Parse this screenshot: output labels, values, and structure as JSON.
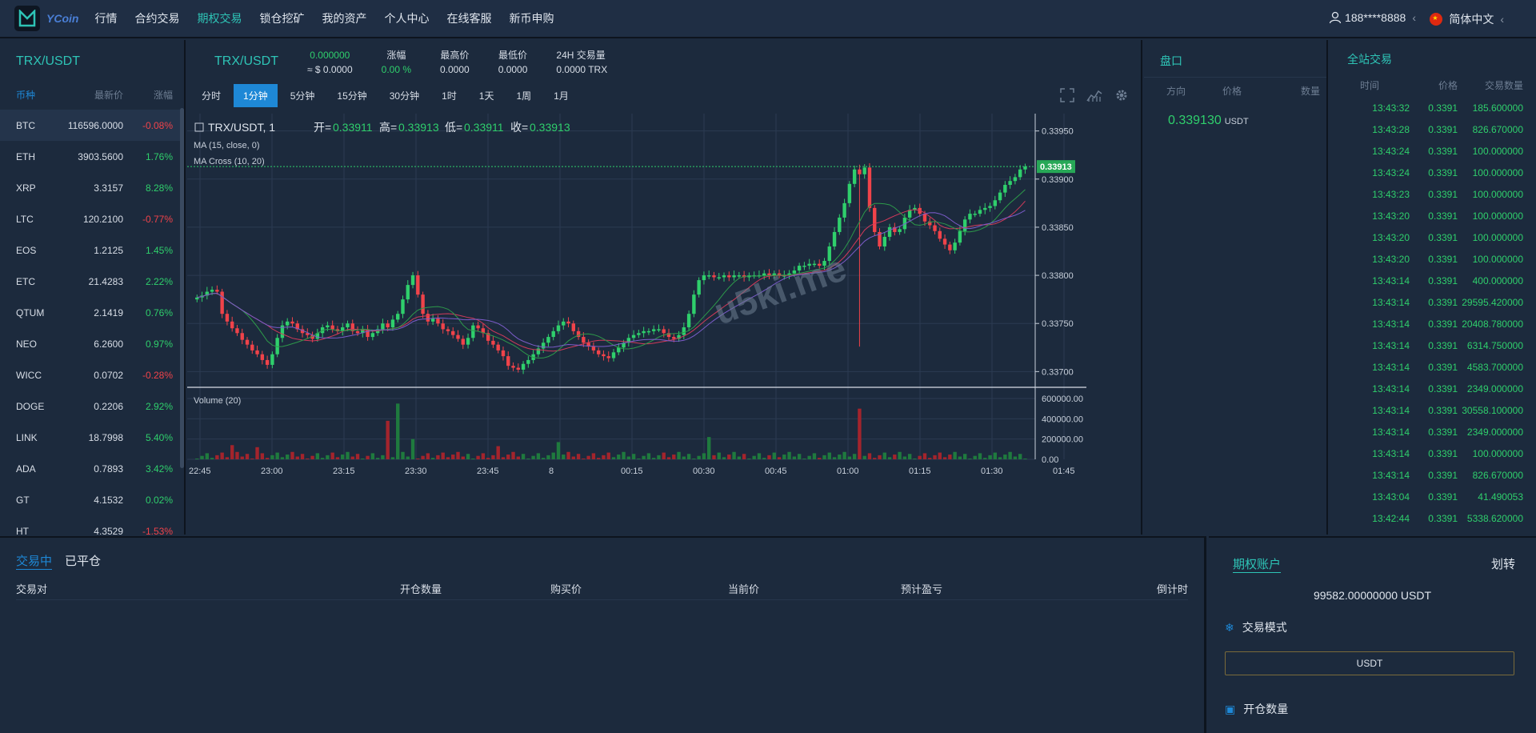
{
  "header": {
    "logo_text": "YCoin",
    "nav": [
      "行情",
      "合约交易",
      "期权交易",
      "锁仓挖矿",
      "我的资产",
      "个人中心",
      "在线客服",
      "新币申购"
    ],
    "active_nav": 2,
    "user": "188****8888",
    "user_arrow": "‹",
    "language": "简体中文",
    "lang_arrow": "‹"
  },
  "market_list": {
    "title": "TRX/USDT",
    "headers": [
      "币种",
      "最新价",
      "涨幅"
    ],
    "rows": [
      {
        "coin": "BTC",
        "price": "116596.0000",
        "change": "-0.08%",
        "dir": "down"
      },
      {
        "coin": "ETH",
        "price": "3903.5600",
        "change": "1.76%",
        "dir": "up"
      },
      {
        "coin": "XRP",
        "price": "3.3157",
        "change": "8.28%",
        "dir": "up"
      },
      {
        "coin": "LTC",
        "price": "120.2100",
        "change": "-0.77%",
        "dir": "down"
      },
      {
        "coin": "EOS",
        "price": "1.2125",
        "change": "1.45%",
        "dir": "up"
      },
      {
        "coin": "ETC",
        "price": "21.4283",
        "change": "2.22%",
        "dir": "up"
      },
      {
        "coin": "QTUM",
        "price": "2.1419",
        "change": "0.76%",
        "dir": "up"
      },
      {
        "coin": "NEO",
        "price": "6.2600",
        "change": "0.97%",
        "dir": "up"
      },
      {
        "coin": "WICC",
        "price": "0.0702",
        "change": "-0.28%",
        "dir": "down"
      },
      {
        "coin": "DOGE",
        "price": "0.2206",
        "change": "2.92%",
        "dir": "up"
      },
      {
        "coin": "LINK",
        "price": "18.7998",
        "change": "5.40%",
        "dir": "up"
      },
      {
        "coin": "ADA",
        "price": "0.7893",
        "change": "3.42%",
        "dir": "up"
      },
      {
        "coin": "GT",
        "price": "4.1532",
        "change": "0.02%",
        "dir": "up"
      },
      {
        "coin": "HT",
        "price": "4.3529",
        "change": "-1.53%",
        "dir": "down"
      }
    ]
  },
  "ticker": {
    "pair": "TRX/USDT",
    "price": "0.000000",
    "price_usd": "≈ $ 0.0000",
    "change_label": "涨幅",
    "change": "0.00 %",
    "high_label": "最高价",
    "high": "0.0000",
    "low_label": "最低价",
    "low": "0.0000",
    "vol_label": "24H 交易量",
    "vol": "0.0000 TRX"
  },
  "intervals": [
    "分时",
    "1分钟",
    "5分钟",
    "15分钟",
    "30分钟",
    "1时",
    "1天",
    "1周",
    "1月"
  ],
  "active_interval": 1,
  "chart_data": {
    "type": "candlestick",
    "symbol": "TRX/USDT, 1",
    "ohlc_text": {
      "open_label": "开=",
      "open": "0.33911",
      "high_label": "高=",
      "high": "0.33913",
      "low_label": "低=",
      "low": "0.33911",
      "close_label": "收=",
      "close": "0.33913"
    },
    "indicators": [
      "MA (15, close, 0)",
      "MA Cross (10, 20)"
    ],
    "volume_label": "Volume (20)",
    "price_ticks": [
      0.3395,
      0.339,
      0.3385,
      0.338,
      0.3375,
      0.337
    ],
    "price_tick_labels": [
      "0.33950",
      "0.33900",
      "0.33850",
      "0.33800",
      "0.33750",
      "0.33700"
    ],
    "ylim": [
      0.33687,
      0.33968
    ],
    "last_price": "0.33913",
    "volume_ticks": [
      600000,
      400000,
      200000,
      0
    ],
    "volume_tick_labels": [
      "600000.00",
      "400000.00",
      "200000.00",
      "0.00"
    ],
    "time_labels": [
      "22:45",
      "23:00",
      "23:15",
      "23:30",
      "23:45",
      "8",
      "00:15",
      "00:30",
      "00:45",
      "01:00",
      "01:15",
      "01:30",
      "01:45"
    ],
    "candles": [
      0.33777,
      0.33779,
      0.33783,
      0.33785,
      0.33783,
      0.3376,
      0.33752,
      0.33745,
      0.3374,
      0.33733,
      0.33728,
      0.33722,
      0.33718,
      0.33712,
      0.33707,
      0.33718,
      0.33735,
      0.33748,
      0.33752,
      0.3375,
      0.33744,
      0.3374,
      0.33738,
      0.33734,
      0.3374,
      0.33746,
      0.33748,
      0.33744,
      0.33742,
      0.33746,
      0.3375,
      0.33742,
      0.3374,
      0.33744,
      0.33736,
      0.3374,
      0.33744,
      0.3375,
      0.33746,
      0.33754,
      0.3376,
      0.33775,
      0.3379,
      0.338,
      0.3378,
      0.3376,
      0.33752,
      0.33755,
      0.3375,
      0.33744,
      0.33742,
      0.33738,
      0.33734,
      0.33728,
      0.33735,
      0.33748,
      0.33745,
      0.3374,
      0.33732,
      0.33728,
      0.33722,
      0.33716,
      0.33706,
      0.33704,
      0.33702,
      0.33708,
      0.33712,
      0.33718,
      0.33724,
      0.3373,
      0.33736,
      0.33742,
      0.33748,
      0.33752,
      0.3375,
      0.33742,
      0.33736,
      0.3373,
      0.33726,
      0.33722,
      0.33718,
      0.33716,
      0.33714,
      0.3372,
      0.33725,
      0.3373,
      0.33735,
      0.33738,
      0.3374,
      0.33742,
      0.33742,
      0.33744,
      0.33744,
      0.3374,
      0.33736,
      0.33734,
      0.33738,
      0.33746,
      0.3376,
      0.3378,
      0.33795,
      0.338,
      0.338,
      0.33798,
      0.33798,
      0.338,
      0.33798,
      0.338,
      0.338,
      0.33798,
      0.338,
      0.338,
      0.338,
      0.33802,
      0.338,
      0.33802,
      0.338,
      0.338,
      0.33802,
      0.33805,
      0.3381,
      0.3381,
      0.33812,
      0.33812,
      0.3381,
      0.33815,
      0.3383,
      0.33845,
      0.3386,
      0.33875,
      0.33895,
      0.3391,
      0.33905,
      0.33912,
      0.3387,
      0.33845,
      0.3383,
      0.3384,
      0.3385,
      0.33845,
      0.33848,
      0.3386,
      0.33868,
      0.3387,
      0.33864,
      0.33856,
      0.33852,
      0.33846,
      0.33838,
      0.33832,
      0.33826,
      0.33834,
      0.33846,
      0.33858,
      0.33864,
      0.33864,
      0.33868,
      0.3387,
      0.33872,
      0.33878,
      0.33886,
      0.33894,
      0.33898,
      0.33902,
      0.3391,
      0.33913
    ],
    "big_wick_index": 132,
    "volume_spikes": [
      {
        "i": 7,
        "v": 140000
      },
      {
        "i": 12,
        "v": 120000
      },
      {
        "i": 38,
        "v": 380000
      },
      {
        "i": 40,
        "v": 550000
      },
      {
        "i": 43,
        "v": 200000
      },
      {
        "i": 60,
        "v": 130000
      },
      {
        "i": 72,
        "v": 170000
      },
      {
        "i": 102,
        "v": 220000
      },
      {
        "i": 132,
        "v": 500000
      }
    ]
  },
  "orderbook": {
    "title": "盘口",
    "headers": [
      "方向",
      "价格",
      "数量"
    ],
    "price": "0.339130",
    "unit": "USDT"
  },
  "trades": {
    "title": "全站交易",
    "headers": [
      "时间",
      "价格",
      "交易数量"
    ],
    "rows": [
      [
        "13:43:32",
        "0.3391",
        "185.600000"
      ],
      [
        "13:43:28",
        "0.3391",
        "826.670000"
      ],
      [
        "13:43:24",
        "0.3391",
        "100.000000"
      ],
      [
        "13:43:24",
        "0.3391",
        "100.000000"
      ],
      [
        "13:43:23",
        "0.3391",
        "100.000000"
      ],
      [
        "13:43:20",
        "0.3391",
        "100.000000"
      ],
      [
        "13:43:20",
        "0.3391",
        "100.000000"
      ],
      [
        "13:43:20",
        "0.3391",
        "100.000000"
      ],
      [
        "13:43:14",
        "0.3391",
        "400.000000"
      ],
      [
        "13:43:14",
        "0.3391",
        "29595.420000"
      ],
      [
        "13:43:14",
        "0.3391",
        "20408.780000"
      ],
      [
        "13:43:14",
        "0.3391",
        "6314.750000"
      ],
      [
        "13:43:14",
        "0.3391",
        "4583.700000"
      ],
      [
        "13:43:14",
        "0.3391",
        "2349.000000"
      ],
      [
        "13:43:14",
        "0.3391",
        "30558.100000"
      ],
      [
        "13:43:14",
        "0.3391",
        "2349.000000"
      ],
      [
        "13:43:14",
        "0.3391",
        "100.000000"
      ],
      [
        "13:43:14",
        "0.3391",
        "826.670000"
      ],
      [
        "13:43:04",
        "0.3391",
        "41.490053"
      ],
      [
        "13:42:44",
        "0.3391",
        "5338.620000"
      ]
    ]
  },
  "positions": {
    "tabs": [
      "交易中",
      "已平仓"
    ],
    "headers": [
      "交易对",
      "开仓数量",
      "购买价",
      "当前价",
      "预计盈亏",
      "倒计时"
    ]
  },
  "account": {
    "title": "期权账户",
    "transfer": "划转",
    "balance": "99582.00000000 USDT",
    "mode_label": "交易模式",
    "mode_value": "USDT",
    "qty_label": "开仓数量"
  },
  "watermark": "u5ki.me"
}
